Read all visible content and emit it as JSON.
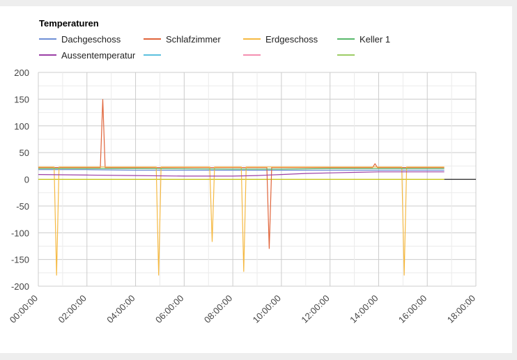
{
  "chart_data": {
    "type": "line",
    "title": "Temperaturen",
    "xlabel": "",
    "ylabel": "",
    "xlim": [
      0,
      18
    ],
    "ylim": [
      -200,
      200
    ],
    "xticks": [
      "00:00:00",
      "02:00:00",
      "04:00:00",
      "06:00:00",
      "08:00:00",
      "10:00:00",
      "12:00:00",
      "14:00:00",
      "16:00:00",
      "18:00:00"
    ],
    "yticks": [
      "200",
      "150",
      "100",
      "50",
      "0",
      "-50",
      "-100",
      "-150",
      "-200"
    ],
    "grid": true,
    "legend_position": "top-left",
    "series": [
      {
        "name": "Dachgeschoss",
        "color": "#6f8fd6",
        "x": [
          0,
          2,
          4,
          6,
          8,
          9.5,
          12,
          14,
          16.7
        ],
        "y": [
          18,
          18,
          17,
          17,
          17,
          17,
          17,
          17,
          17
        ]
      },
      {
        "name": "Schlafzimmer",
        "color": "#e0643a",
        "x": [
          0,
          2.55,
          2.65,
          2.75,
          3.2,
          9.4,
          9.5,
          9.6,
          13.75,
          13.85,
          13.95,
          16.7
        ],
        "y": [
          22,
          22,
          150,
          22,
          22,
          22,
          -130,
          22,
          22,
          29,
          22,
          22
        ]
      },
      {
        "name": "Erdgeschoss",
        "color": "#f5b942",
        "x": [
          0,
          0.65,
          0.75,
          0.85,
          4.85,
          4.95,
          5.05,
          7.05,
          7.15,
          7.25,
          8.35,
          8.45,
          8.55,
          14.95,
          15.05,
          15.15,
          16.7
        ],
        "y": [
          23,
          23,
          -180,
          23,
          23,
          -180,
          23,
          23,
          -117,
          23,
          23,
          -173,
          23,
          23,
          -180,
          23,
          23
        ]
      },
      {
        "name": "Keller 1",
        "color": "#58b86a",
        "x": [
          0,
          4,
          8,
          10,
          12,
          14,
          16.7
        ],
        "y": [
          20,
          20,
          19,
          19,
          20,
          20,
          20
        ]
      },
      {
        "name": "Aussentemperatur",
        "color": "#9b3fa6",
        "x": [
          0,
          2,
          4,
          6,
          8,
          9,
          10,
          11,
          12,
          13,
          14,
          15,
          16.7
        ],
        "y": [
          9,
          8,
          7,
          6,
          6,
          7,
          9,
          11,
          12,
          13,
          14,
          14,
          14
        ]
      },
      {
        "name": "",
        "color": "#5bc0de",
        "x": [],
        "y": []
      },
      {
        "name": "",
        "color": "#f48fb1",
        "x": [],
        "y": []
      },
      {
        "name": "",
        "color": "#9ccc65",
        "x": [],
        "y": []
      }
    ],
    "reference_lines": [
      {
        "color": "#222222",
        "x": [
          16.7,
          18
        ],
        "y": [
          0,
          0
        ]
      },
      {
        "color": "#c0c000",
        "x": [
          0,
          16.7
        ],
        "y": [
          0,
          0
        ]
      }
    ]
  }
}
